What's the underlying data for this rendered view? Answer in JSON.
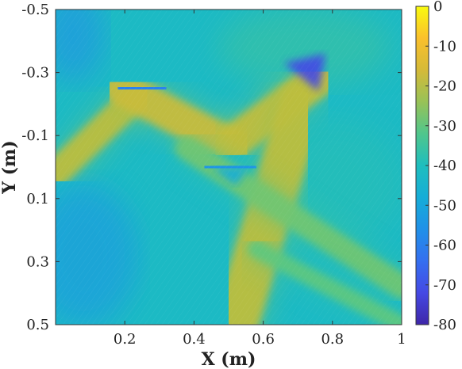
{
  "chart_data": {
    "type": "heatmap",
    "title": "",
    "xlabel": "X (m)",
    "ylabel": "Y (m)",
    "xlim": [
      0,
      1
    ],
    "ylim": [
      -0.5,
      0.5
    ],
    "y_reversed": true,
    "x_ticks": [
      0.2,
      0.4,
      0.6,
      0.8,
      1
    ],
    "x_tick_labels": [
      "0.2",
      "0.4",
      "0.6",
      "0.8",
      "1"
    ],
    "y_ticks": [
      -0.5,
      -0.3,
      -0.1,
      0.1,
      0.3,
      0.5
    ],
    "y_tick_labels": [
      "-0.5",
      "-0.3",
      "-0.1",
      "0.1",
      "0.3",
      "0.5"
    ],
    "colorbar": {
      "min": -80,
      "max": 0,
      "ticks": [
        0,
        -10,
        -20,
        -30,
        -40,
        -50,
        -60,
        -70,
        -80
      ],
      "tick_labels": [
        "0",
        "-10",
        "-20",
        "-30",
        "-40",
        "-50",
        "-60",
        "-70",
        "-80"
      ],
      "colormap": "parula"
    },
    "background_level_db": -42,
    "beams": [
      {
        "from": [
          0.0,
          0.02
        ],
        "to": [
          0.24,
          -0.23
        ],
        "width": 0.08,
        "level_db": -20
      },
      {
        "from": [
          0.19,
          -0.25
        ],
        "to": [
          0.52,
          -0.06
        ],
        "width": 0.1,
        "level_db": -18
      },
      {
        "from": [
          0.49,
          -0.06
        ],
        "to": [
          0.76,
          -0.28
        ],
        "width": 0.1,
        "level_db": -19
      },
      {
        "from": [
          0.71,
          -0.2
        ],
        "to": [
          0.52,
          0.5
        ],
        "width": 0.13,
        "level_db": -20
      },
      {
        "from": [
          0.38,
          -0.06
        ],
        "to": [
          1.0,
          0.38
        ],
        "width": 0.07,
        "level_db": -28
      },
      {
        "from": [
          0.58,
          0.26
        ],
        "to": [
          1.0,
          0.5
        ],
        "width": 0.05,
        "level_db": -30
      }
    ],
    "obstacles": [
      {
        "x": [
          0.18,
          0.32
        ],
        "y": -0.25,
        "level_db": -60
      },
      {
        "x": [
          0.43,
          0.58
        ],
        "y": 0.0,
        "level_db": -55
      }
    ],
    "shadow_regions": [
      {
        "polygon": [
          [
            0.66,
            -0.33
          ],
          [
            0.78,
            -0.36
          ],
          [
            0.76,
            -0.24
          ]
        ],
        "level_db": -72
      },
      {
        "polygon": [
          [
            0.45,
            0.0
          ],
          [
            0.56,
            0.0
          ],
          [
            0.52,
            0.06
          ]
        ],
        "level_db": -48
      }
    ]
  }
}
